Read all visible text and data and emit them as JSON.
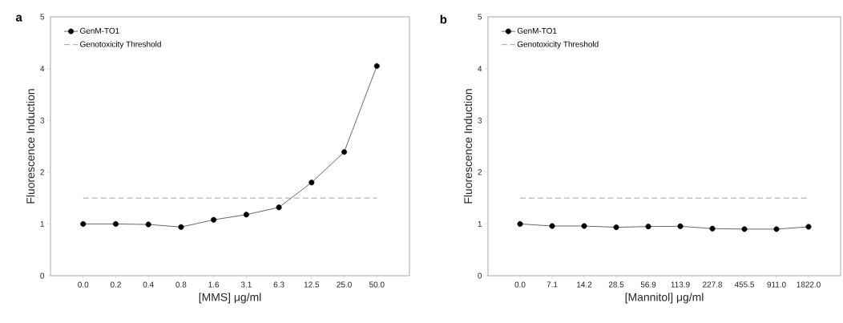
{
  "chart_data": [
    {
      "type": "line",
      "title": "a",
      "xlabel": "[MMS] μg/ml",
      "ylabel": "Fluorescence Induction",
      "categories": [
        "0.0",
        "0.2",
        "0.4",
        "0.8",
        "1.6",
        "3.1",
        "6.3",
        "12.5",
        "25.0",
        "50.0"
      ],
      "series": [
        {
          "name": "GenM-TO1",
          "color": "#000000",
          "values": [
            1.0,
            1.0,
            0.99,
            0.94,
            1.08,
            1.18,
            1.32,
            1.8,
            2.39,
            4.05
          ]
        }
      ],
      "ref_lines": [
        {
          "axis": "y",
          "value": 1.5,
          "label": "Genotoxicity Threshold",
          "color": "#999999",
          "line_style": "dashed"
        }
      ],
      "ylim": [
        0,
        5
      ],
      "yticks": [
        0,
        1,
        2,
        3,
        4,
        5
      ],
      "legend": "top left",
      "marker": "circle",
      "line_style": "solid",
      "grid": false
    },
    {
      "type": "line",
      "title": "b",
      "xlabel": "[Mannitol] μg/ml",
      "ylabel": "Fluorescence Induction",
      "categories": [
        "0.0",
        "7.1",
        "14.2",
        "28.5",
        "56.9",
        "113.9",
        "227.8",
        "455.5",
        "911.0",
        "1822.0"
      ],
      "series": [
        {
          "name": "GenM-TO1",
          "color": "#000000",
          "values": [
            1.0,
            0.96,
            0.96,
            0.935,
            0.95,
            0.955,
            0.91,
            0.9,
            0.9,
            0.945
          ]
        }
      ],
      "ref_lines": [
        {
          "axis": "y",
          "value": 1.5,
          "label": "Genotoxicity Threshold",
          "color": "#999999",
          "line_style": "dashed"
        }
      ],
      "ylim": [
        0,
        5
      ],
      "yticks": [
        0,
        1,
        2,
        3,
        4,
        5
      ],
      "legend": "top left",
      "marker": "circle",
      "line_style": "solid",
      "grid": false
    }
  ]
}
